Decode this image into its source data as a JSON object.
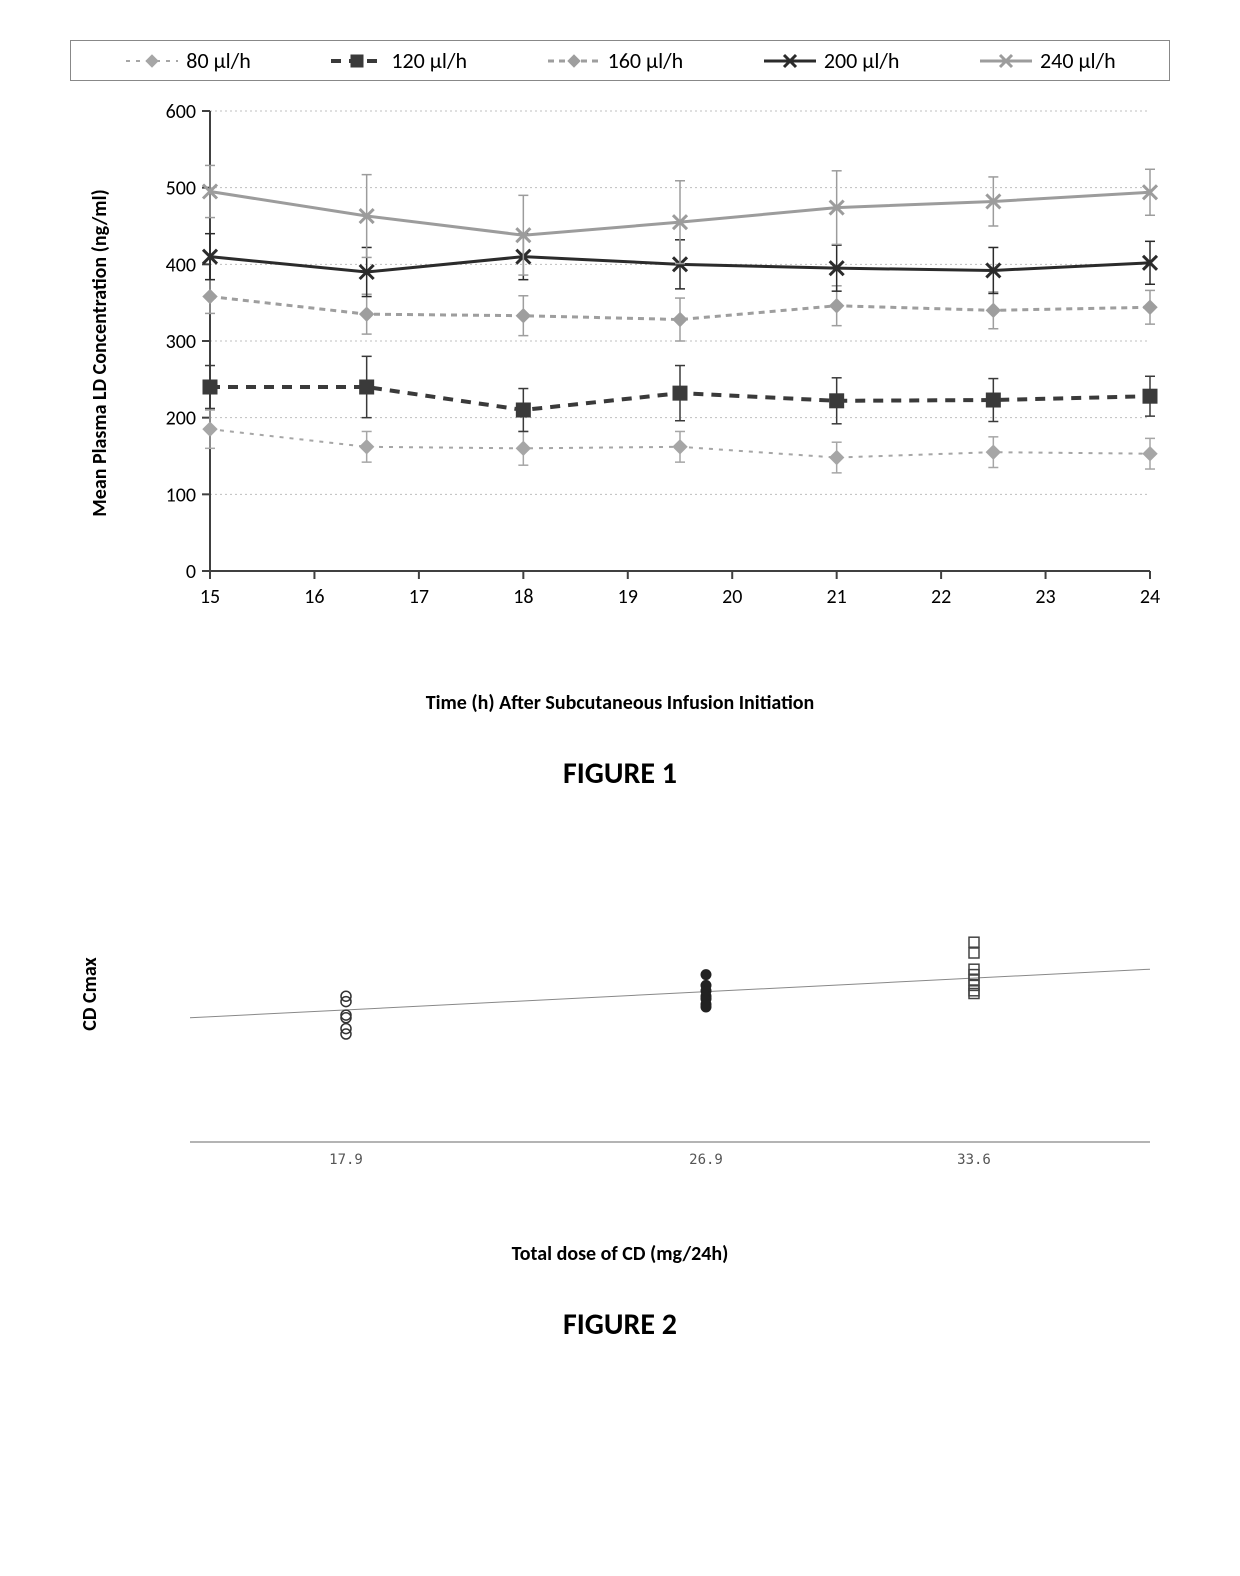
{
  "figure1": {
    "title": "FIGURE 1",
    "type": "line-with-errorbars",
    "x_label": "Time (h) After Subcutaneous Infusion Initiation",
    "y_label": "Mean Plasma LD Concentration (ng/ml)",
    "x_ticks": [
      15,
      16,
      17,
      18,
      19,
      20,
      21,
      22,
      23,
      24
    ],
    "y_ticks": [
      0,
      100,
      200,
      300,
      400,
      500,
      600
    ],
    "xlim": [
      15,
      24
    ],
    "ylim": [
      0,
      600
    ],
    "x_data": [
      15,
      16.5,
      18,
      19.5,
      21,
      22.5,
      24
    ],
    "plot_bg": "#ffffff",
    "grid_color": "#bfbfbf",
    "axis_color": "#404040",
    "label_fontsize": 20,
    "tick_fontsize": 20,
    "series": [
      {
        "name": "80 µl/h",
        "color": "#a6a6a6",
        "marker": "diamond",
        "line_dash": "4 6",
        "line_width": 2,
        "values": [
          185,
          162,
          160,
          162,
          148,
          155,
          153
        ],
        "errors": [
          25,
          20,
          22,
          20,
          20,
          20,
          20
        ]
      },
      {
        "name": "120 µl/h",
        "color": "#3a3a3a",
        "marker": "square",
        "line_dash": "10 8",
        "line_width": 4,
        "values": [
          240,
          240,
          210,
          232,
          222,
          223,
          228
        ],
        "errors": [
          28,
          40,
          28,
          36,
          30,
          28,
          26
        ]
      },
      {
        "name": "160 µl/h",
        "color": "#9e9e9e",
        "marker": "diamond",
        "line_dash": "6 5",
        "line_width": 3,
        "values": [
          358,
          335,
          333,
          328,
          346,
          340,
          344
        ],
        "errors": [
          22,
          26,
          26,
          28,
          26,
          24,
          22
        ]
      },
      {
        "name": "200 µl/h",
        "color": "#2b2b2b",
        "marker": "x",
        "line_dash": "",
        "line_width": 3,
        "values": [
          410,
          390,
          410,
          400,
          395,
          392,
          402
        ],
        "errors": [
          30,
          32,
          30,
          32,
          30,
          30,
          28
        ]
      },
      {
        "name": "240 µl/h",
        "color": "#9c9c9c",
        "marker": "x",
        "line_dash": "",
        "line_width": 3,
        "values": [
          495,
          463,
          438,
          455,
          474,
          482,
          494
        ],
        "errors": [
          34,
          54,
          52,
          54,
          48,
          32,
          30
        ]
      }
    ]
  },
  "figure2": {
    "title": "FIGURE 2",
    "type": "scatter-with-fit",
    "x_label": "Total dose of CD (mg/24h)",
    "y_label": "CD Cmax",
    "x_ticks": [
      "17.9",
      "26.9",
      "33.6"
    ],
    "x_positions": [
      17.9,
      26.9,
      33.6
    ],
    "xlim": [
      14,
      38
    ],
    "ylim": [
      0,
      100
    ],
    "plot_bg": "#ffffff",
    "axis_color": "#6a6a6a",
    "fit_line": {
      "x1": 14,
      "y1": 46,
      "x2": 38,
      "y2": 64,
      "color": "#888888",
      "width": 1
    },
    "groups": [
      {
        "x": 17.9,
        "marker": "circle-open",
        "color": "#333333",
        "y_values": [
          54,
          52,
          47,
          46,
          42,
          40
        ]
      },
      {
        "x": 26.9,
        "marker": "circle-filled",
        "color": "#222222",
        "y_values": [
          62,
          58,
          56,
          54,
          53,
          51,
          50
        ]
      },
      {
        "x": 33.6,
        "marker": "square-open",
        "color": "#444444",
        "y_values": [
          74,
          70,
          64,
          62,
          60,
          58,
          56,
          55
        ]
      }
    ]
  }
}
